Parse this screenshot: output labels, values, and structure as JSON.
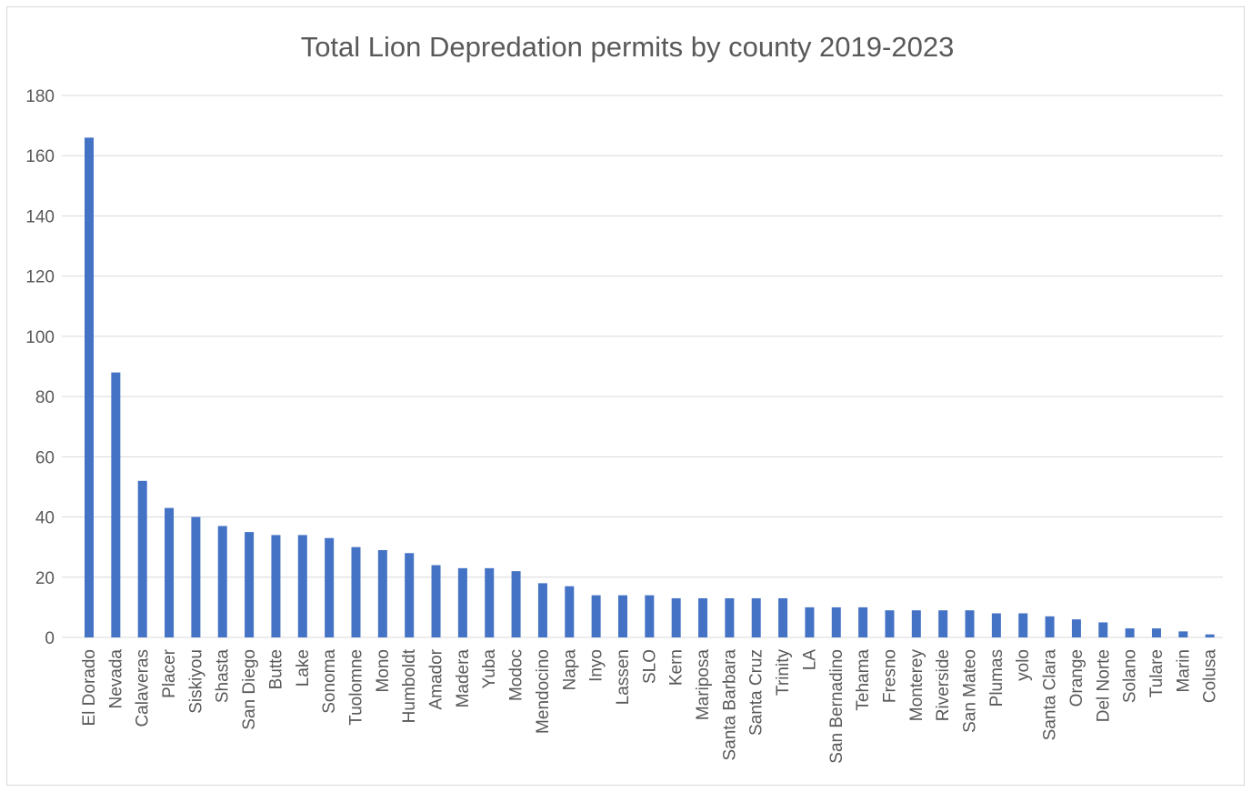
{
  "chart_data": {
    "type": "bar",
    "title": "Total Lion Depredation permits by county 2019-2023",
    "xlabel": "",
    "ylabel": "",
    "ylim": [
      0,
      180
    ],
    "yticks": [
      "0",
      "20",
      "40",
      "60",
      "80",
      "100",
      "120",
      "140",
      "160",
      "180"
    ],
    "grid": true,
    "legend": "none",
    "bar_color": "#4472c4",
    "categories": [
      "El Dorado",
      "Nevada",
      "Calaveras",
      "Placer",
      "Siskiyou",
      "Shasta",
      "San Diego",
      "Butte",
      "Lake",
      "Sonoma",
      "Tuolomne",
      "Mono",
      "Humboldt",
      "Amador",
      "Madera",
      "Yuba",
      "Modoc",
      "Mendocino",
      "Napa",
      "Inyo",
      "Lassen",
      "SLO",
      "Kern",
      "Mariposa",
      "Santa Barbara",
      "Santa Cruz",
      "Trinity",
      "LA",
      "San Bernadino",
      "Tehama",
      "Fresno",
      "Monterey",
      "Riverside",
      "San Mateo",
      "Plumas",
      "yolo",
      "Santa Clara",
      "Orange",
      "Del Norte",
      "Solano",
      "Tulare",
      "Marin",
      "Colusa"
    ],
    "values": [
      166,
      88,
      52,
      43,
      40,
      37,
      35,
      34,
      34,
      33,
      30,
      29,
      28,
      24,
      23,
      23,
      22,
      18,
      17,
      14,
      14,
      14,
      13,
      13,
      13,
      13,
      13,
      10,
      10,
      10,
      9,
      9,
      9,
      9,
      8,
      8,
      7,
      6,
      5,
      3,
      3,
      2,
      1
    ]
  }
}
